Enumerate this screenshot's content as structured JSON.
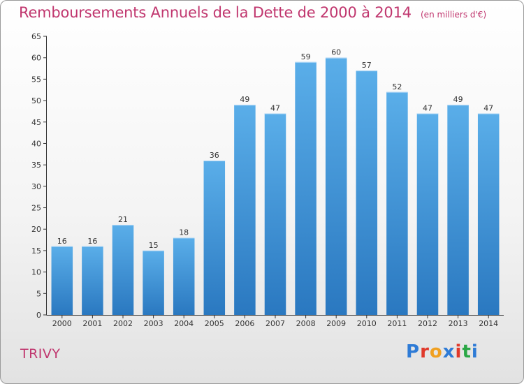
{
  "header": {
    "title": "Remboursements Annuels de la Dette de 2000 à 2014",
    "unit": "(en milliers d'€)"
  },
  "commune": "TRIVY",
  "logo": {
    "text": "Proxiti",
    "colors": [
      "#2e7bd6",
      "#e0392b",
      "#f0a020",
      "#2e7bd6",
      "#e0392b",
      "#2aa745",
      "#2e7bd6"
    ]
  },
  "chart_data": {
    "type": "bar",
    "categories": [
      "2000",
      "2001",
      "2002",
      "2003",
      "2004",
      "2005",
      "2006",
      "2007",
      "2008",
      "2009",
      "2010",
      "2011",
      "2012",
      "2013",
      "2014"
    ],
    "values": [
      16,
      16,
      21,
      15,
      18,
      36,
      49,
      47,
      59,
      60,
      57,
      52,
      47,
      49,
      47
    ],
    "ylim": [
      0,
      65
    ],
    "yticks": [
      0,
      5,
      10,
      15,
      20,
      25,
      30,
      35,
      40,
      45,
      50,
      55,
      60,
      65
    ],
    "grid": false,
    "bar_color_top": "#5aaee9",
    "bar_color_bottom": "#2a78c0",
    "title_color": "#c0366e"
  }
}
